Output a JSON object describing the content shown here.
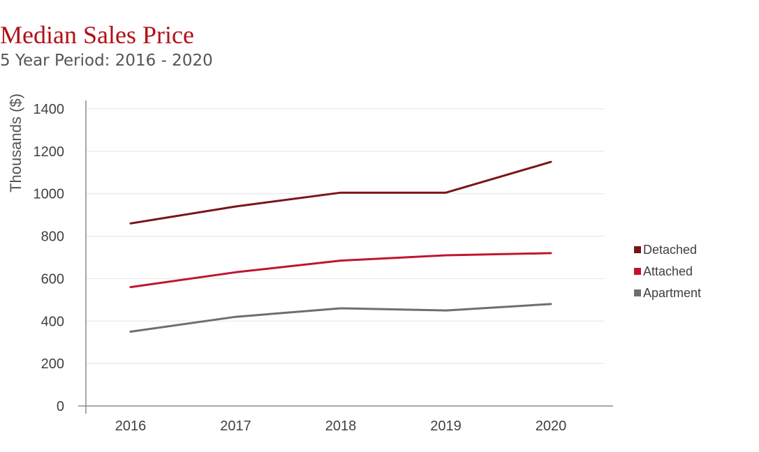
{
  "header": {
    "title": "Median Sales Price",
    "subtitle": "5 Year Period: 2016 - 2020"
  },
  "chart_data": {
    "type": "line",
    "title": "Median Sales Price",
    "subtitle": "5 Year Period: 2016 - 2020",
    "xlabel": "",
    "ylabel": "Thousands ($)",
    "x": [
      "2016",
      "2017",
      "2018",
      "2019",
      "2020"
    ],
    "ylim": [
      0,
      1400
    ],
    "yticks": [
      0,
      200,
      400,
      600,
      800,
      1000,
      1200,
      1400
    ],
    "grid": true,
    "legend": "right",
    "series": [
      {
        "name": "Detached",
        "color": "#7a1418",
        "values": [
          860,
          940,
          1005,
          1005,
          1150
        ]
      },
      {
        "name": "Attached",
        "color": "#c0152f",
        "values": [
          560,
          630,
          685,
          710,
          720
        ]
      },
      {
        "name": "Apartment",
        "color": "#6e6e6e",
        "values": [
          350,
          420,
          460,
          450,
          480
        ]
      }
    ]
  }
}
